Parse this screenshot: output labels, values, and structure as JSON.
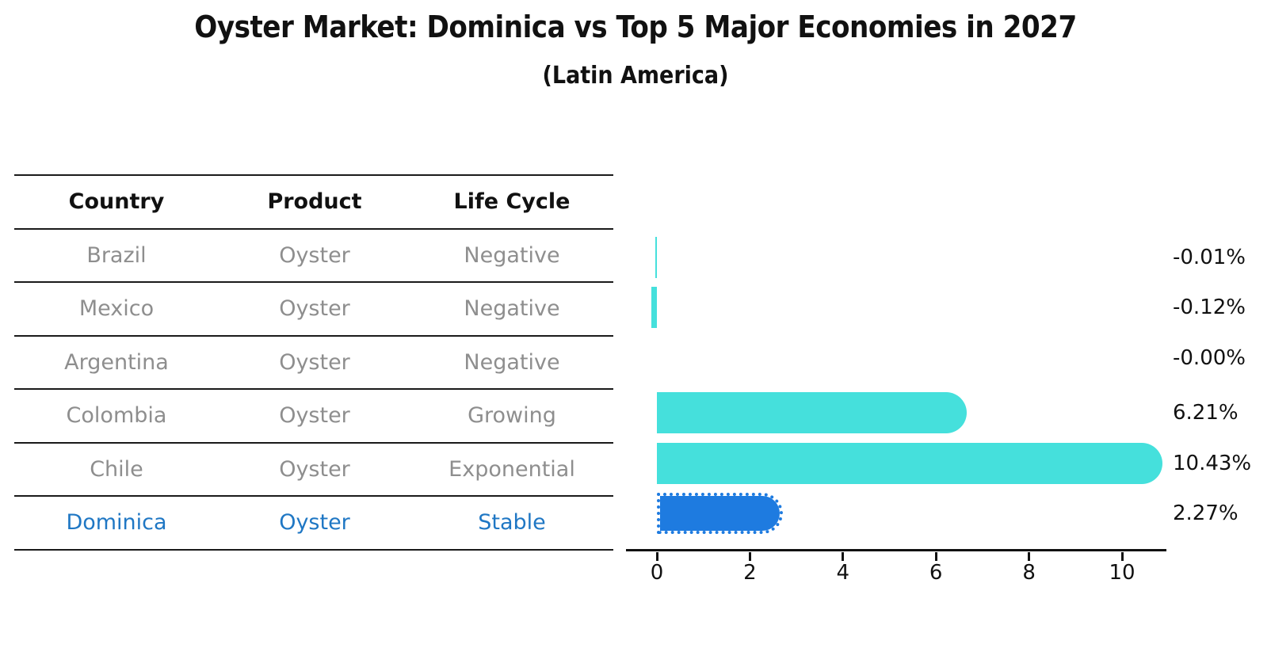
{
  "title": "Oyster Market: Dominica vs Top 5 Major Economies in 2027",
  "subtitle": "(Latin America)",
  "table": {
    "headers": [
      "Country",
      "Product",
      "Life Cycle"
    ],
    "rows": [
      {
        "country": "Brazil",
        "product": "Oyster",
        "life_cycle": "Negative"
      },
      {
        "country": "Mexico",
        "product": "Oyster",
        "life_cycle": "Negative"
      },
      {
        "country": "Argentina",
        "product": "Oyster",
        "life_cycle": "Negative"
      },
      {
        "country": "Colombia",
        "product": "Oyster",
        "life_cycle": "Growing"
      },
      {
        "country": "Chile",
        "product": "Oyster",
        "life_cycle": "Exponential"
      },
      {
        "country": "Dominica",
        "product": "Oyster",
        "life_cycle": "Stable"
      }
    ],
    "highlight_row": 5
  },
  "chart_data": {
    "type": "bar",
    "orientation": "horizontal",
    "title": "Oyster Market: Dominica vs Top 5 Major Economies in 2027 (Latin America)",
    "categories": [
      "Brazil",
      "Mexico",
      "Argentina",
      "Colombia",
      "Chile",
      "Dominica"
    ],
    "values": [
      -0.01,
      -0.12,
      -0.0,
      6.21,
      10.43,
      2.27
    ],
    "value_labels": [
      "-0.01%",
      "-0.12%",
      "-0.00%",
      "6.21%",
      "10.43%",
      "2.27%"
    ],
    "x_ticks": [
      "0",
      "2",
      "4",
      "6",
      "8",
      "10"
    ],
    "xlim": [
      -0.7,
      11
    ],
    "grid": false,
    "legend": false,
    "highlight_index": 5,
    "bar_color": "#45E0DC",
    "highlight_color": "#1E7BE0"
  },
  "colors": {
    "title_text": "#111111",
    "table_text": "#8e8e8e",
    "table_highlight_text": "#1F77C4",
    "axis": "#111111",
    "value_label_text": "#111111"
  }
}
